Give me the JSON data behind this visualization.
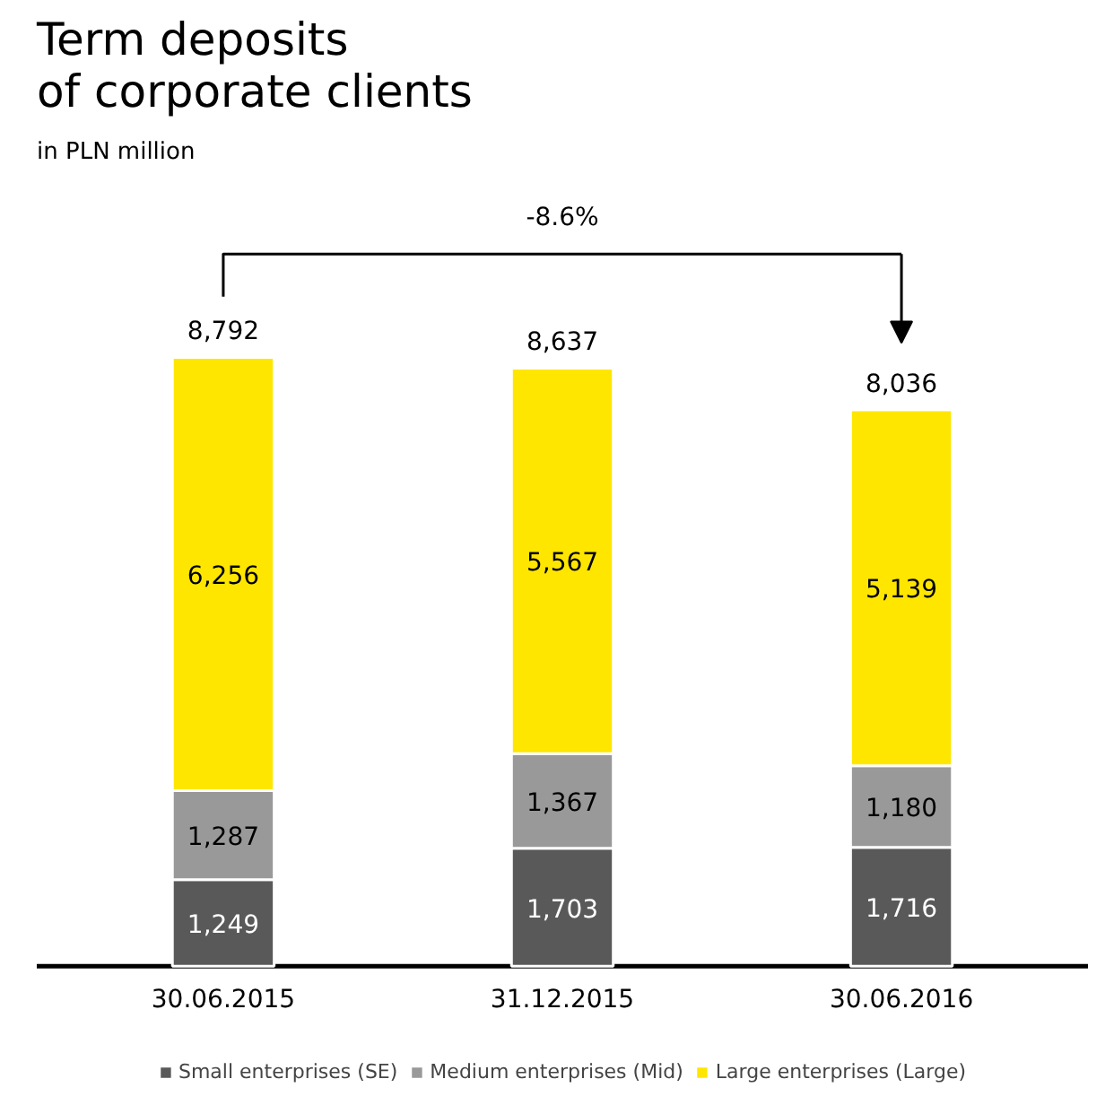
{
  "chart_data": {
    "type": "bar",
    "title": "Term deposits\nof corporate clients",
    "subtitle": "in PLN million",
    "categories": [
      "30.06.2015",
      "31.12.2015",
      "30.06.2016"
    ],
    "stacked": true,
    "legend": "bottom",
    "series": [
      {
        "name": "Small enterprises (SE)",
        "color": "#595959",
        "values": [
          1249,
          1703,
          1716
        ],
        "value_labels": [
          "1,249",
          "1,703",
          "1,716"
        ]
      },
      {
        "name": "Medium enterprises (Mid)",
        "color": "#999999",
        "values": [
          1287,
          1367,
          1180
        ],
        "value_labels": [
          "1,287",
          "1,367",
          "1,180"
        ]
      },
      {
        "name": "Large enterprises (Large)",
        "color": "#ffe600",
        "values": [
          6256,
          5567,
          5139
        ],
        "value_labels": [
          "6,256",
          "5,567",
          "5,139"
        ]
      }
    ],
    "totals": [
      "8,792",
      "8,637",
      "8,036"
    ],
    "annotations": [
      "-8.6%"
    ]
  }
}
